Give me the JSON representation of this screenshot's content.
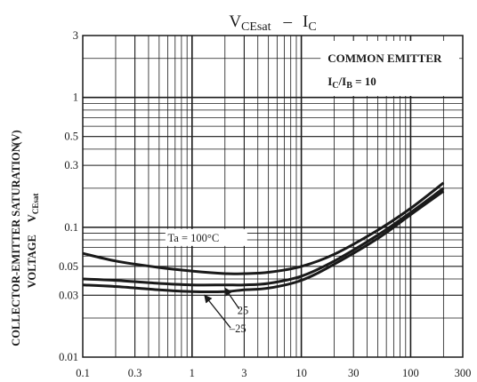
{
  "chart_data": {
    "type": "line",
    "title": {
      "v": "V",
      "v_sub": "CEsat",
      "dash": "–",
      "i": "I",
      "i_sub": "C"
    },
    "ylabel": {
      "line1": "COLLECTOR-EMITTER SATURATION",
      "line2": "VOLTAGE",
      "symbol": "V",
      "symbol_sub": "CEsat",
      "unit": "(V)"
    },
    "xlabel": "",
    "x_scale": "log",
    "y_scale": "log",
    "xlim": [
      0.1,
      300
    ],
    "ylim": [
      0.01,
      3
    ],
    "grid": true,
    "x_ticks": [
      {
        "value": 0.1,
        "label": "0.1"
      },
      {
        "value": 0.3,
        "label": "0.3"
      },
      {
        "value": 1,
        "label": "1"
      },
      {
        "value": 3,
        "label": "3"
      },
      {
        "value": 10,
        "label": "10"
      },
      {
        "value": 30,
        "label": "30"
      },
      {
        "value": 100,
        "label": "100"
      },
      {
        "value": 300,
        "label": "300"
      }
    ],
    "y_ticks": [
      {
        "value": 0.01,
        "label": "0.01"
      },
      {
        "value": 0.03,
        "label": "0.03"
      },
      {
        "value": 0.05,
        "label": "0.05"
      },
      {
        "value": 0.1,
        "label": "0.1"
      },
      {
        "value": 0.3,
        "label": "0.3"
      },
      {
        "value": 0.5,
        "label": "0.5"
      },
      {
        "value": 1,
        "label": "1"
      },
      {
        "value": 3,
        "label": "3"
      }
    ],
    "legend_box": {
      "line1": "COMMON EMITTER",
      "line2_prefix": "I",
      "line2_sub1": "C",
      "line2_mid": "/I",
      "line2_sub2": "B",
      "line2_suffix": " = 10"
    },
    "series": [
      {
        "name": "Ta = 100°C",
        "x": [
          0.1,
          0.2,
          0.5,
          1,
          2,
          3,
          5,
          10,
          20,
          50,
          100,
          200
        ],
        "y": [
          0.063,
          0.055,
          0.049,
          0.046,
          0.044,
          0.044,
          0.045,
          0.05,
          0.062,
          0.095,
          0.14,
          0.22
        ]
      },
      {
        "name": "25",
        "x": [
          0.1,
          0.2,
          0.5,
          1,
          2,
          3,
          5,
          10,
          20,
          50,
          100,
          200
        ],
        "y": [
          0.04,
          0.039,
          0.037,
          0.036,
          0.036,
          0.036,
          0.037,
          0.042,
          0.055,
          0.087,
          0.13,
          0.2
        ]
      },
      {
        "name": "–25",
        "x": [
          0.1,
          0.2,
          0.5,
          1,
          2,
          3,
          5,
          10,
          20,
          50,
          100,
          200
        ],
        "y": [
          0.036,
          0.035,
          0.033,
          0.032,
          0.032,
          0.033,
          0.034,
          0.039,
          0.052,
          0.082,
          0.125,
          0.19
        ]
      }
    ],
    "colors": {
      "ink": "#1a1a1a",
      "background": "#ffffff"
    }
  }
}
